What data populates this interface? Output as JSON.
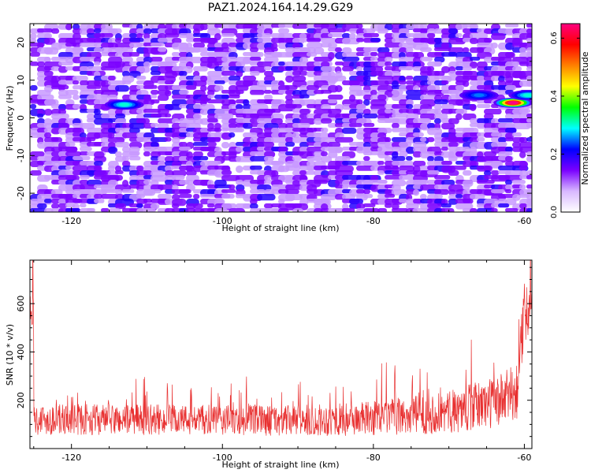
{
  "title": "PAZ1.2024.164.14.29.G29",
  "chart_data": [
    {
      "type": "heatmap",
      "title": "PAZ1.2024.164.14.29.G29",
      "xlabel": "Height of straight line (km)",
      "ylabel": "Frequency (Hz)",
      "xlim": [
        -125.5,
        -59
      ],
      "ylim": [
        -25,
        25
      ],
      "x_ticks": [
        -120,
        -100,
        -80,
        -60
      ],
      "y_ticks": [
        -20,
        -10,
        0,
        10,
        20
      ],
      "colorbar": {
        "label": "Normalized spectral amplitude",
        "range": [
          0,
          0.65
        ],
        "ticks": [
          0.0,
          0.2,
          0.4,
          0.6
        ],
        "colormap": "hsv-rainbow",
        "stops": [
          "#ffffff",
          "#d8b8ff",
          "#7a00ff",
          "#0000ff",
          "#00ffff",
          "#00ff00",
          "#ffff00",
          "#ff8000",
          "#ff0000",
          "#ff0080"
        ]
      },
      "features": [
        {
          "x": -113,
          "y": 3.5,
          "value": 0.3
        },
        {
          "x": -61.5,
          "y": 4,
          "value": 0.65
        },
        {
          "x": -66,
          "y": 6,
          "value": 0.25
        },
        {
          "x": -59.5,
          "y": 6,
          "value": 0.3
        }
      ]
    },
    {
      "type": "line",
      "xlabel": "Height of straight line (km)",
      "ylabel": "SNR (10 * v/v)",
      "xlim": [
        -125.5,
        -59
      ],
      "ylim": [
        0,
        780
      ],
      "x_ticks": [
        -120,
        -100,
        -80,
        -60
      ],
      "y_ticks": [
        200,
        400,
        600
      ],
      "color": "#e83030",
      "profile": [
        {
          "x": -125,
          "mean": 120,
          "spread": 80
        },
        {
          "x": -110,
          "mean": 120,
          "spread": 80
        },
        {
          "x": -90,
          "mean": 115,
          "spread": 80
        },
        {
          "x": -80,
          "mean": 125,
          "spread": 90
        },
        {
          "x": -70,
          "mean": 150,
          "spread": 110
        },
        {
          "x": -63,
          "mean": 200,
          "spread": 140
        },
        {
          "x": -61,
          "mean": 240,
          "spread": 150
        },
        {
          "x": -60,
          "mean": 560,
          "spread": 160
        },
        {
          "x": -59,
          "mean": 620,
          "spread": 140
        }
      ]
    }
  ]
}
